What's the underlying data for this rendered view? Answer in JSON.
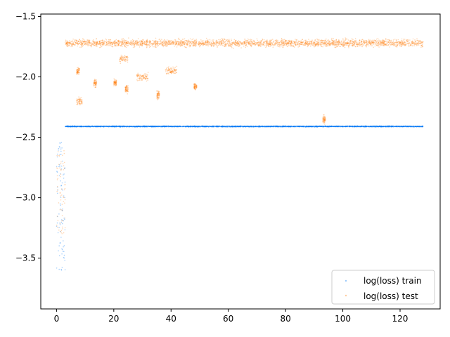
{
  "chart_data": {
    "type": "scatter",
    "title": "",
    "xlabel": "",
    "ylabel": "",
    "xlim": [
      -5.5,
      134
    ],
    "ylim": [
      -3.92,
      -1.48
    ],
    "x_ticks": [
      0,
      20,
      40,
      60,
      80,
      100,
      120
    ],
    "y_ticks": [
      -3.5,
      -3.0,
      -2.5,
      -2.0,
      -1.5
    ],
    "x_tick_labels": [
      "0",
      "20",
      "40",
      "60",
      "80",
      "100",
      "120"
    ],
    "y_tick_labels": [
      "−3.5",
      "−3.0",
      "−2.5",
      "−2.0",
      "−1.5"
    ],
    "grid": false,
    "legend_position": "lower-right",
    "series": [
      {
        "name": "log(loss) train",
        "color": "#0a7cf5",
        "segments": [
          {
            "x_range": [
              0,
              3
            ],
            "y_range": [
              -3.6,
              -2.5
            ],
            "note_level": "dense"
          },
          {
            "x_range": [
              3,
              128
            ],
            "level": -2.41
          }
        ]
      },
      {
        "name": "log(loss) test",
        "color": "#ff7f0e",
        "segments": [
          {
            "x_range": [
              0,
              3
            ],
            "y_range": [
              -3.3,
              -2.6
            ]
          },
          {
            "x_range": [
              3,
              128
            ],
            "level": -1.72
          },
          {
            "x_range": [
              7,
              9
            ],
            "level": -2.2
          },
          {
            "x_range": [
              7,
              8
            ],
            "level": -1.95
          },
          {
            "x_range": [
              13,
              14
            ],
            "level": -2.05
          },
          {
            "x_range": [
              20,
              21
            ],
            "level": -2.05
          },
          {
            "x_range": [
              22,
              25
            ],
            "level": -1.85
          },
          {
            "x_range": [
              24,
              25
            ],
            "level": -2.1
          },
          {
            "x_range": [
              28,
              32
            ],
            "level": -2.0
          },
          {
            "x_range": [
              35,
              36
            ],
            "level": -2.15
          },
          {
            "x_range": [
              38,
              42
            ],
            "level": -1.95
          },
          {
            "x_range": [
              48,
              49
            ],
            "level": -2.08
          },
          {
            "x_range": [
              93,
              94
            ],
            "level": -2.35
          }
        ]
      }
    ],
    "legend": {
      "entries": [
        "log(loss) train",
        "log(loss) test"
      ]
    }
  }
}
